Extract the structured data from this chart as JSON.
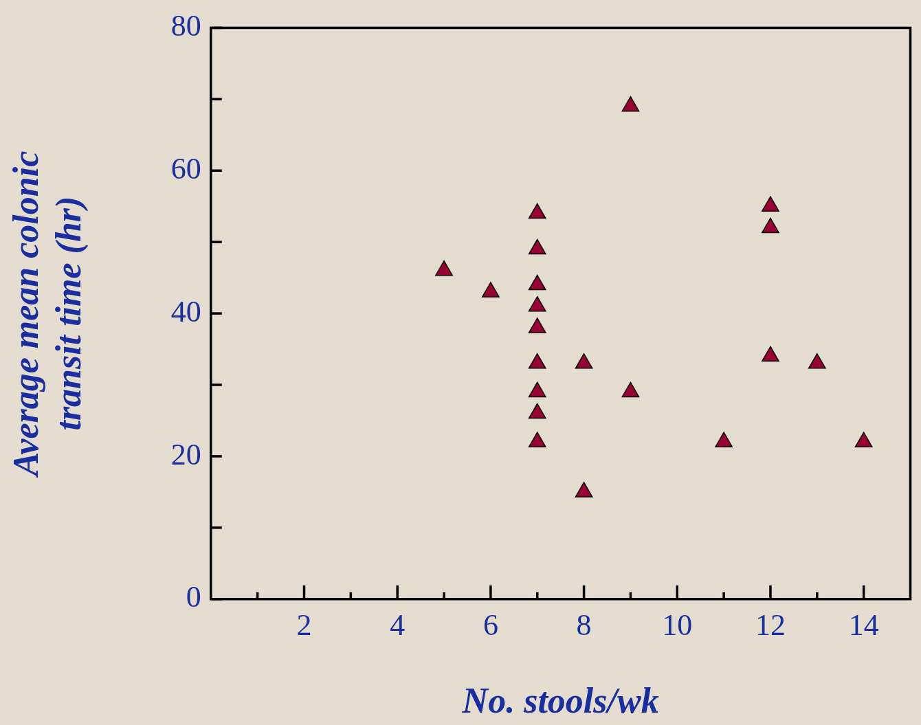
{
  "chart_data": {
    "type": "scatter",
    "xlabel": "No. stools/wk",
    "ylabel": "Average mean colonic transit time (hr)",
    "x": [
      5,
      6,
      7,
      7,
      7,
      7,
      7,
      7,
      7,
      7,
      7,
      8,
      8,
      9,
      9,
      11,
      12,
      12,
      12,
      13,
      14
    ],
    "values": [
      46,
      43,
      54,
      49,
      44,
      41,
      38,
      33,
      29,
      26,
      22,
      33,
      15,
      69,
      29,
      22,
      55,
      52,
      34,
      33,
      22
    ],
    "color": "#990033",
    "marker": "triangle",
    "grid": false,
    "xlim": [
      0,
      15
    ],
    "xticks": [
      {
        "value": 1,
        "label": null
      },
      2,
      {
        "value": 3,
        "label": null
      },
      4,
      {
        "value": 5,
        "label": null
      },
      6,
      {
        "value": 7,
        "label": null
      },
      8,
      {
        "value": 9,
        "label": null
      },
      10,
      {
        "value": 11,
        "label": null
      },
      12,
      {
        "value": 13,
        "label": null
      },
      14
    ],
    "ylim": [
      0,
      80
    ],
    "yticks": [
      0,
      {
        "value": 10,
        "label": null
      },
      20,
      {
        "value": 30,
        "label": null
      },
      40,
      {
        "value": 50,
        "label": null
      },
      60,
      {
        "value": 70,
        "label": null
      },
      80
    ]
  }
}
